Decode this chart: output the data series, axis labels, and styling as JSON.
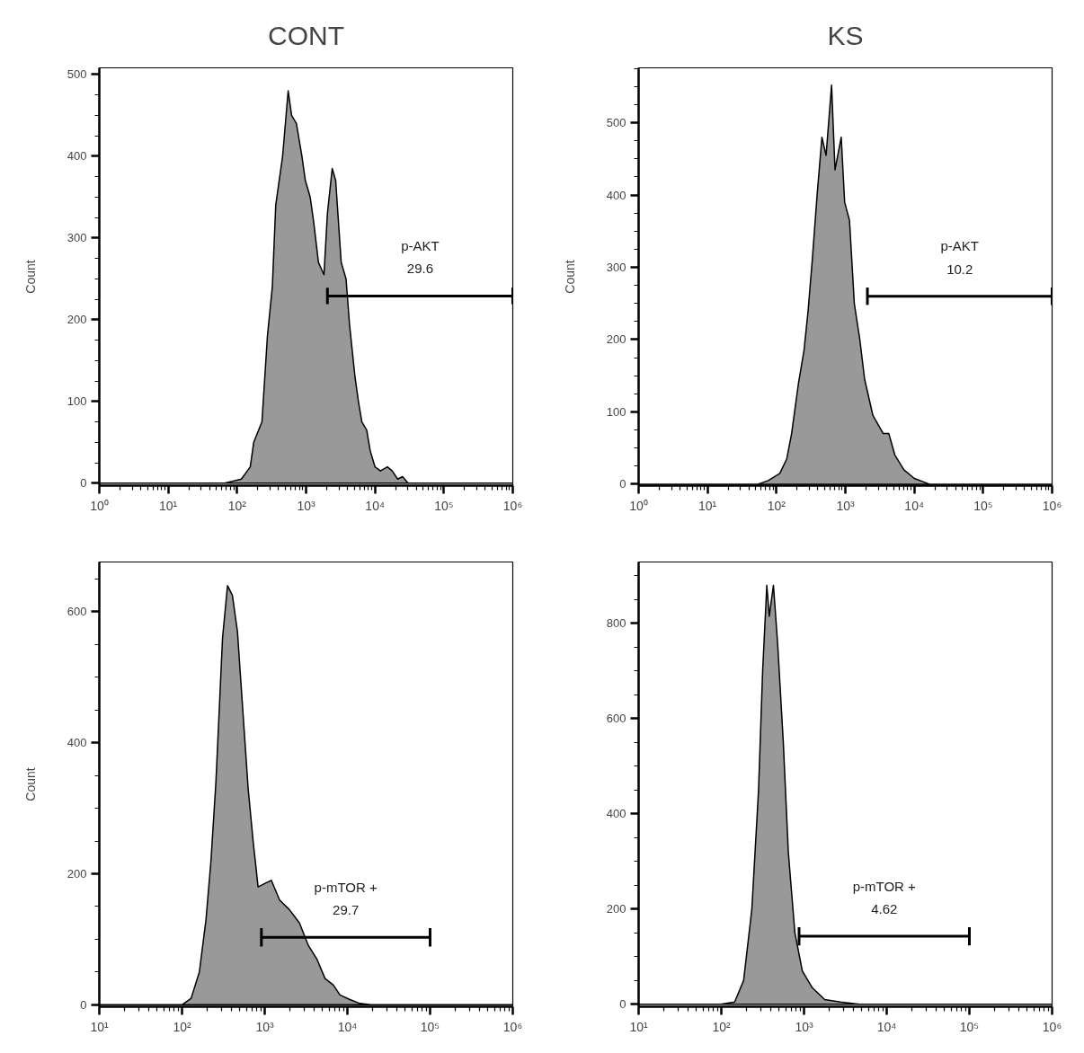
{
  "chart_data": [
    {
      "type": "area",
      "title": "CONT",
      "ylabel": "Count",
      "log": "x",
      "xlim": [
        1,
        1000000
      ],
      "ylim": [
        -3,
        508
      ],
      "xticks": [
        {
          "value": 1,
          "label": "10⁰"
        },
        {
          "value": 10,
          "label": "10¹"
        },
        {
          "value": 100,
          "label": "10²"
        },
        {
          "value": 1000,
          "label": "10³"
        },
        {
          "value": 10000,
          "label": "10⁴"
        },
        {
          "value": 100000,
          "label": "10⁵"
        },
        {
          "value": 1000000,
          "label": "10⁶"
        }
      ],
      "yticks": [
        0,
        100,
        200,
        300,
        400,
        500
      ],
      "x": [
        1,
        66,
        93,
        115,
        155,
        174,
        229,
        275,
        324,
        363,
        407,
        457,
        550,
        617,
        724,
        871,
        977,
        1148,
        1288,
        1514,
        1820,
        2042,
        2399,
        2692,
        3236,
        3802,
        4266,
        5129,
        5754,
        6457,
        7586,
        8511,
        10000,
        12023,
        15136,
        17783,
        21380,
        25119,
        30200,
        1000000
      ],
      "series": [
        {
          "color": "#999999",
          "values": [
            0,
            0,
            3,
            5,
            20,
            50,
            75,
            180,
            240,
            340,
            370,
            400,
            480,
            450,
            440,
            400,
            370,
            350,
            320,
            270,
            255,
            330,
            385,
            370,
            270,
            250,
            195,
            130,
            100,
            75,
            65,
            40,
            20,
            15,
            20,
            15,
            5,
            8,
            0,
            0
          ]
        },
        {
          "type": "line",
          "color": "#000000",
          "x": [
            2042,
            1000000
          ],
          "values": [
            229,
            229
          ],
          "errors": [
            10,
            10
          ]
        }
      ],
      "annotations": [
        "p-AKT",
        "29.6"
      ]
    },
    {
      "type": "area",
      "title": "KS",
      "ylabel": "Count",
      "log": "x",
      "xlim": [
        1,
        1000000
      ],
      "ylim": [
        -2,
        576
      ],
      "xticks": [
        {
          "value": 1,
          "label": "10⁰"
        },
        {
          "value": 10,
          "label": "10¹"
        },
        {
          "value": 100,
          "label": "10²"
        },
        {
          "value": 1000,
          "label": "10³"
        },
        {
          "value": 10000,
          "label": "10⁴"
        },
        {
          "value": 100000,
          "label": "10⁵"
        },
        {
          "value": 1000000,
          "label": "10⁶"
        }
      ],
      "yticks": [
        0,
        100,
        200,
        300,
        400,
        500
      ],
      "x": [
        1,
        54,
        76,
        112,
        141,
        166,
        209,
        251,
        288,
        331,
        389,
        457,
        525,
        631,
        708,
        871,
        977,
        1148,
        1349,
        1622,
        1905,
        2512,
        3548,
        4266,
        5248,
        7079,
        10000,
        16596,
        1000000
      ],
      "series": [
        {
          "color": "#999999",
          "values": [
            0,
            0,
            5,
            15,
            35,
            70,
            140,
            185,
            240,
            310,
            400,
            480,
            455,
            552,
            435,
            480,
            390,
            365,
            250,
            200,
            145,
            95,
            70,
            70,
            40,
            20,
            8,
            0,
            0
          ]
        },
        {
          "type": "line",
          "color": "#000000",
          "x": [
            2089,
            1000000
          ],
          "values": [
            260,
            260
          ],
          "errors": [
            12,
            12
          ]
        }
      ],
      "annotations": [
        "p-AKT",
        "10.2"
      ]
    },
    {
      "type": "area",
      "ylabel": "Count",
      "log": "x",
      "xlim": [
        10,
        1000000
      ],
      "ylim": [
        -3,
        676
      ],
      "xticks": [
        {
          "value": 10,
          "label": "10¹"
        },
        {
          "value": 100,
          "label": "10²"
        },
        {
          "value": 1000,
          "label": "10³"
        },
        {
          "value": 10000,
          "label": "10⁴"
        },
        {
          "value": 100000,
          "label": "10⁵"
        },
        {
          "value": 1000000,
          "label": "10⁶"
        }
      ],
      "yticks": [
        0,
        200,
        400,
        600
      ],
      "x": [
        10,
        100,
        129,
        162,
        195,
        224,
        257,
        282,
        309,
        355,
        407,
        468,
        550,
        631,
        724,
        832,
        1000,
        1202,
        1514,
        1995,
        2630,
        3388,
        4266,
        5370,
        6761,
        8128,
        10715,
        14125,
        19055,
        1000000
      ],
      "series": [
        {
          "color": "#999999",
          "values": [
            0,
            0,
            10,
            50,
            130,
            220,
            340,
            450,
            560,
            640,
            625,
            570,
            440,
            330,
            250,
            180,
            185,
            190,
            160,
            145,
            125,
            90,
            70,
            40,
            30,
            15,
            8,
            2,
            0,
            0
          ]
        },
        {
          "type": "line",
          "color": "#000000",
          "x": [
            912,
            100000
          ],
          "values": [
            103,
            103
          ],
          "errors": [
            14,
            14
          ]
        }
      ],
      "annotations": [
        "p-mTOR +",
        "29.7"
      ]
    },
    {
      "type": "area",
      "log": "x",
      "xlim": [
        10,
        1000000
      ],
      "ylim": [
        -5,
        929
      ],
      "xticks": [
        {
          "value": 10,
          "label": "10¹"
        },
        {
          "value": 100,
          "label": "10²"
        },
        {
          "value": 1000,
          "label": "10³"
        },
        {
          "value": 10000,
          "label": "10⁴"
        },
        {
          "value": 100000,
          "label": "10⁵"
        },
        {
          "value": 1000000,
          "label": "10⁶"
        }
      ],
      "yticks": [
        0,
        200,
        400,
        600,
        800
      ],
      "x": [
        10,
        98,
        145,
        186,
        234,
        282,
        316,
        355,
        380,
        427,
        479,
        562,
        646,
        776,
        955,
        1259,
        1778,
        2754,
        4677,
        1000000
      ],
      "series": [
        {
          "color": "#999999",
          "values": [
            0,
            0,
            5,
            50,
            200,
            450,
            700,
            880,
            815,
            880,
            760,
            550,
            320,
            150,
            70,
            35,
            10,
            5,
            0,
            0
          ]
        },
        {
          "type": "line",
          "color": "#000000",
          "x": [
            871,
            100000
          ],
          "values": [
            143,
            143
          ],
          "errors": [
            19,
            19
          ]
        }
      ],
      "annotations": [
        "p-mTOR +",
        "4.62"
      ]
    }
  ]
}
